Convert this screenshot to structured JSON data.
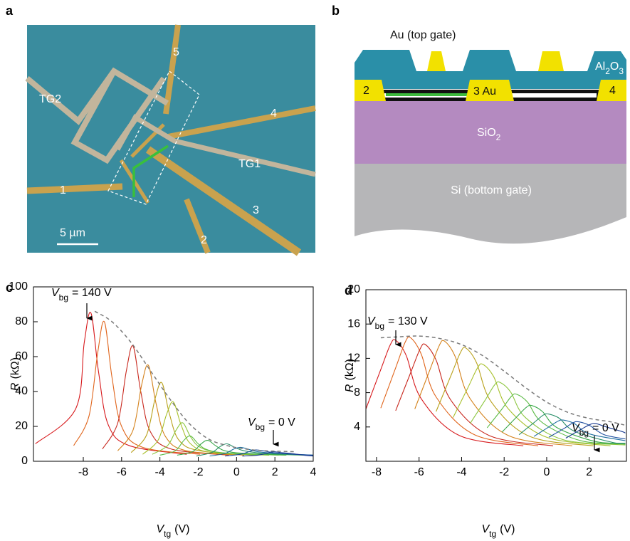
{
  "panel_a": {
    "letter": "a",
    "labels": [
      "5",
      "4",
      "TG2",
      "TG1",
      "1",
      "3",
      "2"
    ],
    "scale_bar": "5 µm"
  },
  "panel_b": {
    "letter": "b",
    "top_gate": "Au (top gate)",
    "dielectric": [
      "Al",
      "2",
      "O",
      "3"
    ],
    "contacts": [
      "2",
      "3 Au",
      "4"
    ],
    "oxide": [
      "SiO",
      "2"
    ],
    "substrate": "Si (bottom gate)"
  },
  "chart_data": [
    {
      "panel": "c",
      "type": "line",
      "xlabel": {
        "main": "V",
        "sub": "tg",
        "rest": "(V)"
      },
      "ylabel": {
        "main": "R",
        "rest": "(kΩ)"
      },
      "xlim": [
        -10.6,
        4
      ],
      "ylim": [
        0,
        100
      ],
      "xticks": [
        -8,
        -6,
        -4,
        -2,
        0,
        2,
        4
      ],
      "yticks": [
        0,
        20,
        40,
        60,
        80,
        100
      ],
      "annotations": [
        {
          "main": "V",
          "sub": "bg",
          "rest": "= 140 V"
        },
        {
          "main": "V",
          "sub": "bg",
          "rest": "= 0 V"
        }
      ],
      "series": [
        {
          "color": "#d7191c",
          "x": [
            -10.5,
            -8.4,
            -7.95,
            -7.6,
            -7.2,
            -6.7,
            -5.6,
            -2.6
          ],
          "values": [
            10,
            30,
            68,
            85,
            51,
            21,
            9,
            4
          ]
        },
        {
          "color": "#e0651c",
          "x": [
            -8.5,
            -7.7,
            -7.25,
            -6.9,
            -6.5,
            -6.0,
            -4.9,
            -1.9
          ],
          "values": [
            9,
            26,
            62,
            80,
            48,
            20,
            8,
            4
          ]
        },
        {
          "color": "#c8281e",
          "x": [
            -7.0,
            -6.2,
            -5.75,
            -5.4,
            -5.0,
            -4.5,
            -3.4,
            -0.4
          ],
          "values": [
            7,
            22,
            52,
            66,
            40,
            17,
            7,
            3.5
          ]
        },
        {
          "color": "#d4821c",
          "x": [
            -6.2,
            -5.4,
            -4.95,
            -4.6,
            -4.2,
            -3.7,
            -2.6,
            0.4
          ],
          "values": [
            6,
            18,
            44,
            55,
            33,
            14,
            6,
            3.5
          ]
        },
        {
          "color": "#b8a01a",
          "x": [
            -5.5,
            -4.7,
            -4.25,
            -3.9,
            -3.5,
            -3.0,
            -1.9,
            1.1
          ],
          "values": [
            5,
            15,
            36,
            45,
            27,
            12,
            6,
            3.5
          ]
        },
        {
          "color": "#a8c02c",
          "x": [
            -4.9,
            -4.1,
            -3.65,
            -3.3,
            -2.9,
            -2.4,
            -1.3,
            1.7
          ],
          "values": [
            4,
            12,
            27,
            34,
            21,
            10,
            5,
            3.5
          ]
        },
        {
          "color": "#8cc63f",
          "x": [
            -4.4,
            -3.6,
            -3.15,
            -2.8,
            -2.4,
            -1.9,
            -0.8,
            2.2
          ],
          "values": [
            4,
            9,
            18,
            22,
            14,
            8,
            5,
            3.5
          ]
        },
        {
          "color": "#5dbb46",
          "x": [
            -4.0,
            -3.2,
            -2.75,
            -2.4,
            -2.0,
            -1.5,
            -0.4,
            2.6
          ],
          "values": [
            3.5,
            6,
            12,
            14.5,
            10,
            6.5,
            4.5,
            3.5
          ]
        },
        {
          "color": "#3aa84a",
          "x": [
            -3.1,
            -2.3,
            -1.85,
            -1.5,
            -1.1,
            -0.6,
            0.5,
            3.5
          ],
          "values": [
            3.5,
            5.5,
            10,
            12,
            9,
            6,
            4.5,
            3.5
          ]
        },
        {
          "color": "#2a8f6a",
          "x": [
            -2.1,
            -1.3,
            -0.85,
            -0.5,
            -0.1,
            0.4,
            1.5,
            4.0
          ],
          "values": [
            3,
            5,
            8.5,
            10,
            8,
            6,
            4.5,
            3.5
          ]
        },
        {
          "color": "#1f6fa0",
          "x": [
            -1.4,
            -0.6,
            -0.15,
            0.2,
            0.6,
            1.1,
            2.2,
            4.0
          ],
          "values": [
            3,
            4.5,
            7,
            8,
            7,
            5.5,
            4.5,
            3.5
          ]
        },
        {
          "color": "#1f4f9f",
          "x": [
            -0.6,
            0.2,
            0.65,
            1.0,
            1.4,
            1.9,
            3.0,
            4.0
          ],
          "values": [
            3,
            4,
            5.5,
            6.5,
            6,
            5,
            4,
            3.5
          ]
        },
        {
          "color": "#1a3a8f",
          "x": [
            0.3,
            1.1,
            1.55,
            1.9,
            2.3,
            2.8,
            3.5,
            4.0
          ],
          "values": [
            3,
            3.5,
            4.5,
            5.5,
            5,
            4.5,
            3.5,
            3
          ]
        },
        {
          "color": "#7a7a7a",
          "dash": true,
          "x": [
            -7.4,
            -6.5,
            -5.5,
            -4.5,
            -3.5,
            -2.5,
            -1.5,
            -0.5,
            0.5,
            1.5,
            3
          ],
          "values": [
            86,
            80,
            68,
            52,
            36,
            22,
            13,
            9,
            7,
            6,
            5.5
          ]
        }
      ]
    },
    {
      "panel": "d",
      "type": "line",
      "xlabel": {
        "main": "V",
        "sub": "tg",
        "rest": "(V)"
      },
      "ylabel": {
        "main": "R",
        "rest": "(kΩ)"
      },
      "xlim": [
        -8.5,
        3.75
      ],
      "ylim": [
        0,
        20
      ],
      "xticks": [
        -8,
        -6,
        -4,
        -2,
        0,
        2
      ],
      "yticks": [
        4,
        8,
        12,
        16,
        20
      ],
      "annotations": [
        {
          "main": "V",
          "sub": "bg",
          "rest": "= 130 V"
        },
        {
          "main": "V",
          "sub": "bg",
          "rest": "= 0 V"
        }
      ],
      "series": [
        {
          "color": "#d7191c",
          "x": [
            -8.5,
            -7.8,
            -7.35,
            -7.1,
            -6.6,
            -5.9,
            -4.1,
            -1.1
          ],
          "values": [
            6.1,
            10.7,
            13.6,
            14.1,
            12.3,
            7.3,
            3.0,
            1.8
          ]
        },
        {
          "color": "#e0651c",
          "x": [
            -7.8,
            -7.1,
            -6.65,
            -6.4,
            -5.9,
            -5.2,
            -3.4,
            -0.4
          ],
          "values": [
            6.2,
            10.9,
            13.9,
            14.4,
            12.5,
            7.5,
            3.1,
            1.8
          ]
        },
        {
          "color": "#c8281e",
          "x": [
            -7.1,
            -6.4,
            -5.95,
            -5.7,
            -5.2,
            -4.5,
            -2.7,
            0.3
          ],
          "values": [
            5.9,
            10.3,
            13.1,
            13.6,
            11.8,
            7.1,
            3.0,
            1.8
          ]
        },
        {
          "color": "#d4821c",
          "x": [
            -6.2,
            -5.5,
            -5.05,
            -4.8,
            -4.3,
            -3.6,
            -1.8,
            1.2
          ],
          "values": [
            6.1,
            10.6,
            13.5,
            14.0,
            12.2,
            7.3,
            3.0,
            1.8
          ]
        },
        {
          "color": "#b8a01a",
          "x": [
            -5.2,
            -4.5,
            -4.05,
            -3.8,
            -3.3,
            -2.6,
            -0.8,
            2.2
          ],
          "values": [
            5.8,
            10.0,
            12.7,
            13.2,
            11.5,
            6.9,
            2.9,
            1.8
          ]
        },
        {
          "color": "#a8c02c",
          "x": [
            -4.4,
            -3.7,
            -3.25,
            -3.0,
            -2.5,
            -1.8,
            0,
            3.0
          ],
          "values": [
            5.1,
            8.6,
            10.9,
            11.3,
            9.9,
            6.1,
            2.8,
            1.8
          ]
        },
        {
          "color": "#8cc63f",
          "x": [
            -3.6,
            -2.9,
            -2.45,
            -2.2,
            -1.7,
            -1.0,
            0.8,
            3.7
          ],
          "values": [
            4.4,
            7.1,
            8.9,
            9.2,
            8.1,
            5.1,
            2.5,
            1.9
          ]
        },
        {
          "color": "#5dbb46",
          "x": [
            -2.8,
            -2.1,
            -1.65,
            -1.4,
            -0.9,
            -0.2,
            1.6,
            3.7
          ],
          "values": [
            3.9,
            6.1,
            7.6,
            7.8,
            6.9,
            4.5,
            2.4,
            2.0
          ]
        },
        {
          "color": "#3aa84a",
          "x": [
            -2.1,
            -1.4,
            -0.95,
            -0.7,
            -0.2,
            0.5,
            2.3,
            3.7
          ],
          "values": [
            3.4,
            5.2,
            6.3,
            6.5,
            5.8,
            3.9,
            2.3,
            2.1
          ]
        },
        {
          "color": "#2a8f6a",
          "x": [
            -1.3,
            -0.6,
            -0.15,
            0.1,
            0.6,
            1.3,
            3.1,
            3.7
          ],
          "values": [
            3.1,
            4.5,
            5.4,
            5.5,
            5.0,
            3.5,
            2.2,
            2.1
          ]
        },
        {
          "color": "#1f6fa0",
          "x": [
            -0.6,
            0.1,
            0.55,
            0.8,
            1.3,
            2.0,
            3.7
          ],
          "values": [
            2.9,
            4.0,
            4.7,
            4.8,
            4.4,
            3.2,
            2.4
          ]
        },
        {
          "color": "#1f4f9f",
          "x": [
            0.1,
            0.8,
            1.25,
            1.5,
            2.0,
            2.7,
            3.7
          ],
          "values": [
            2.8,
            3.8,
            4.5,
            4.6,
            4.2,
            3.1,
            2.6
          ]
        },
        {
          "color": "#1a3a8f",
          "x": [
            0.9,
            1.6,
            2.05,
            2.3,
            2.8,
            3.5,
            3.7
          ],
          "values": [
            2.7,
            3.7,
            4.3,
            4.4,
            4.0,
            3.5,
            3.3
          ]
        },
        {
          "color": "#7a7a7a",
          "dash": true,
          "x": [
            -7.8,
            -7,
            -6,
            -5,
            -4,
            -3,
            -2,
            -1,
            0,
            1,
            2,
            3,
            3.7
          ],
          "values": [
            14.4,
            14.5,
            14.6,
            14.3,
            13.6,
            12.3,
            10.5,
            8.6,
            6.9,
            5.7,
            5.0,
            4.6,
            4.2
          ]
        }
      ]
    }
  ]
}
